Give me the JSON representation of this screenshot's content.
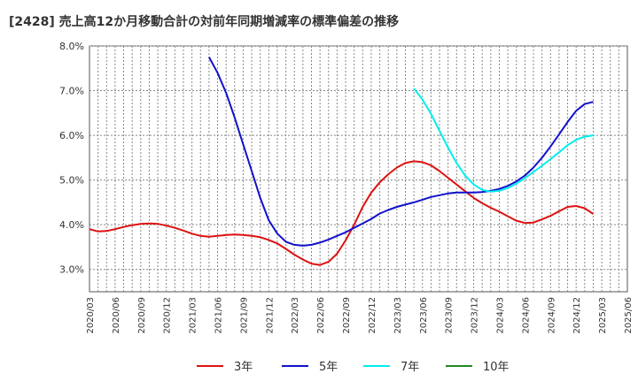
{
  "chart_data": {
    "type": "line",
    "title": "[2428]  売上高12か月移動合計の対前年同期増減率の標準偏差の推移",
    "xlabel": "",
    "ylabel": "",
    "ylim": [
      2.5,
      8.0
    ],
    "y_ticks": [
      "3.0%",
      "4.0%",
      "5.0%",
      "6.0%",
      "7.0%",
      "8.0%"
    ],
    "y_tick_values": [
      3.0,
      4.0,
      5.0,
      6.0,
      7.0,
      8.0
    ],
    "x_ticks": [
      "2020/03",
      "2020/06",
      "2020/09",
      "2020/12",
      "2021/03",
      "2021/06",
      "2021/09",
      "2021/12",
      "2022/03",
      "2022/06",
      "2022/09",
      "2022/12",
      "2023/03",
      "2023/06",
      "2023/09",
      "2023/12",
      "2024/03",
      "2024/06",
      "2024/09",
      "2024/12",
      "2025/03",
      "2025/06"
    ],
    "x_start": "2020/03",
    "grid": true,
    "legend_position": "bottom",
    "series": [
      {
        "name": "3年",
        "color": "#dd1111",
        "points": [
          [
            "2020/03",
            3.9
          ],
          [
            "2020/04",
            3.85
          ],
          [
            "2020/05",
            3.86
          ],
          [
            "2020/06",
            3.9
          ],
          [
            "2020/07",
            3.95
          ],
          [
            "2020/08",
            3.99
          ],
          [
            "2020/09",
            4.02
          ],
          [
            "2020/10",
            4.03
          ],
          [
            "2020/11",
            4.02
          ],
          [
            "2020/12",
            3.98
          ],
          [
            "2021/01",
            3.93
          ],
          [
            "2021/02",
            3.87
          ],
          [
            "2021/03",
            3.8
          ],
          [
            "2021/04",
            3.75
          ],
          [
            "2021/05",
            3.73
          ],
          [
            "2021/06",
            3.75
          ],
          [
            "2021/07",
            3.77
          ],
          [
            "2021/08",
            3.78
          ],
          [
            "2021/09",
            3.77
          ],
          [
            "2021/10",
            3.75
          ],
          [
            "2021/11",
            3.72
          ],
          [
            "2021/12",
            3.66
          ],
          [
            "2022/01",
            3.58
          ],
          [
            "2022/02",
            3.46
          ],
          [
            "2022/03",
            3.33
          ],
          [
            "2022/04",
            3.22
          ],
          [
            "2022/05",
            3.13
          ],
          [
            "2022/06",
            3.1
          ],
          [
            "2022/07",
            3.17
          ],
          [
            "2022/08",
            3.35
          ],
          [
            "2022/09",
            3.65
          ],
          [
            "2022/10",
            4.0
          ],
          [
            "2022/11",
            4.4
          ],
          [
            "2022/12",
            4.72
          ],
          [
            "2023/01",
            4.95
          ],
          [
            "2023/02",
            5.13
          ],
          [
            "2023/03",
            5.28
          ],
          [
            "2023/04",
            5.38
          ],
          [
            "2023/05",
            5.42
          ],
          [
            "2023/06",
            5.4
          ],
          [
            "2023/07",
            5.33
          ],
          [
            "2023/08",
            5.2
          ],
          [
            "2023/09",
            5.05
          ],
          [
            "2023/10",
            4.9
          ],
          [
            "2023/11",
            4.75
          ],
          [
            "2023/12",
            4.6
          ],
          [
            "2024/01",
            4.48
          ],
          [
            "2024/02",
            4.38
          ],
          [
            "2024/03",
            4.29
          ],
          [
            "2024/04",
            4.19
          ],
          [
            "2024/05",
            4.09
          ],
          [
            "2024/06",
            4.04
          ],
          [
            "2024/07",
            4.05
          ],
          [
            "2024/08",
            4.12
          ],
          [
            "2024/09",
            4.2
          ],
          [
            "2024/10",
            4.3
          ],
          [
            "2024/11",
            4.4
          ],
          [
            "2024/12",
            4.42
          ],
          [
            "2025/01",
            4.37
          ],
          [
            "2025/02",
            4.24
          ]
        ]
      },
      {
        "name": "5年",
        "color": "#1111cc",
        "points": [
          [
            "2021/05",
            7.75
          ],
          [
            "2021/06",
            7.4
          ],
          [
            "2021/07",
            6.95
          ],
          [
            "2021/08",
            6.4
          ],
          [
            "2021/09",
            5.8
          ],
          [
            "2021/10",
            5.2
          ],
          [
            "2021/11",
            4.6
          ],
          [
            "2021/12",
            4.1
          ],
          [
            "2022/01",
            3.8
          ],
          [
            "2022/02",
            3.62
          ],
          [
            "2022/03",
            3.55
          ],
          [
            "2022/04",
            3.53
          ],
          [
            "2022/05",
            3.55
          ],
          [
            "2022/06",
            3.6
          ],
          [
            "2022/07",
            3.67
          ],
          [
            "2022/08",
            3.75
          ],
          [
            "2022/09",
            3.83
          ],
          [
            "2022/10",
            3.93
          ],
          [
            "2022/11",
            4.03
          ],
          [
            "2022/12",
            4.13
          ],
          [
            "2023/01",
            4.25
          ],
          [
            "2023/02",
            4.33
          ],
          [
            "2023/03",
            4.4
          ],
          [
            "2023/04",
            4.45
          ],
          [
            "2023/05",
            4.5
          ],
          [
            "2023/06",
            4.56
          ],
          [
            "2023/07",
            4.62
          ],
          [
            "2023/08",
            4.66
          ],
          [
            "2023/09",
            4.7
          ],
          [
            "2023/10",
            4.72
          ],
          [
            "2023/11",
            4.72
          ],
          [
            "2023/12",
            4.72
          ],
          [
            "2024/01",
            4.73
          ],
          [
            "2024/02",
            4.76
          ],
          [
            "2024/03",
            4.8
          ],
          [
            "2024/04",
            4.87
          ],
          [
            "2024/05",
            4.97
          ],
          [
            "2024/06",
            5.1
          ],
          [
            "2024/07",
            5.28
          ],
          [
            "2024/08",
            5.5
          ],
          [
            "2024/09",
            5.75
          ],
          [
            "2024/10",
            6.02
          ],
          [
            "2024/11",
            6.3
          ],
          [
            "2024/12",
            6.55
          ],
          [
            "2025/01",
            6.7
          ],
          [
            "2025/02",
            6.75
          ]
        ]
      },
      {
        "name": "7年",
        "color": "#00eeee",
        "points": [
          [
            "2023/05",
            7.05
          ],
          [
            "2023/06",
            6.8
          ],
          [
            "2023/07",
            6.48
          ],
          [
            "2023/08",
            6.1
          ],
          [
            "2023/09",
            5.72
          ],
          [
            "2023/10",
            5.38
          ],
          [
            "2023/11",
            5.1
          ],
          [
            "2023/12",
            4.9
          ],
          [
            "2024/01",
            4.78
          ],
          [
            "2024/02",
            4.74
          ],
          [
            "2024/03",
            4.76
          ],
          [
            "2024/04",
            4.82
          ],
          [
            "2024/05",
            4.92
          ],
          [
            "2024/06",
            5.04
          ],
          [
            "2024/07",
            5.18
          ],
          [
            "2024/08",
            5.32
          ],
          [
            "2024/09",
            5.47
          ],
          [
            "2024/10",
            5.62
          ],
          [
            "2024/11",
            5.78
          ],
          [
            "2024/12",
            5.9
          ],
          [
            "2025/01",
            5.97
          ],
          [
            "2025/02",
            6.0
          ]
        ]
      },
      {
        "name": "10年",
        "color": "#228822",
        "points": []
      }
    ]
  }
}
